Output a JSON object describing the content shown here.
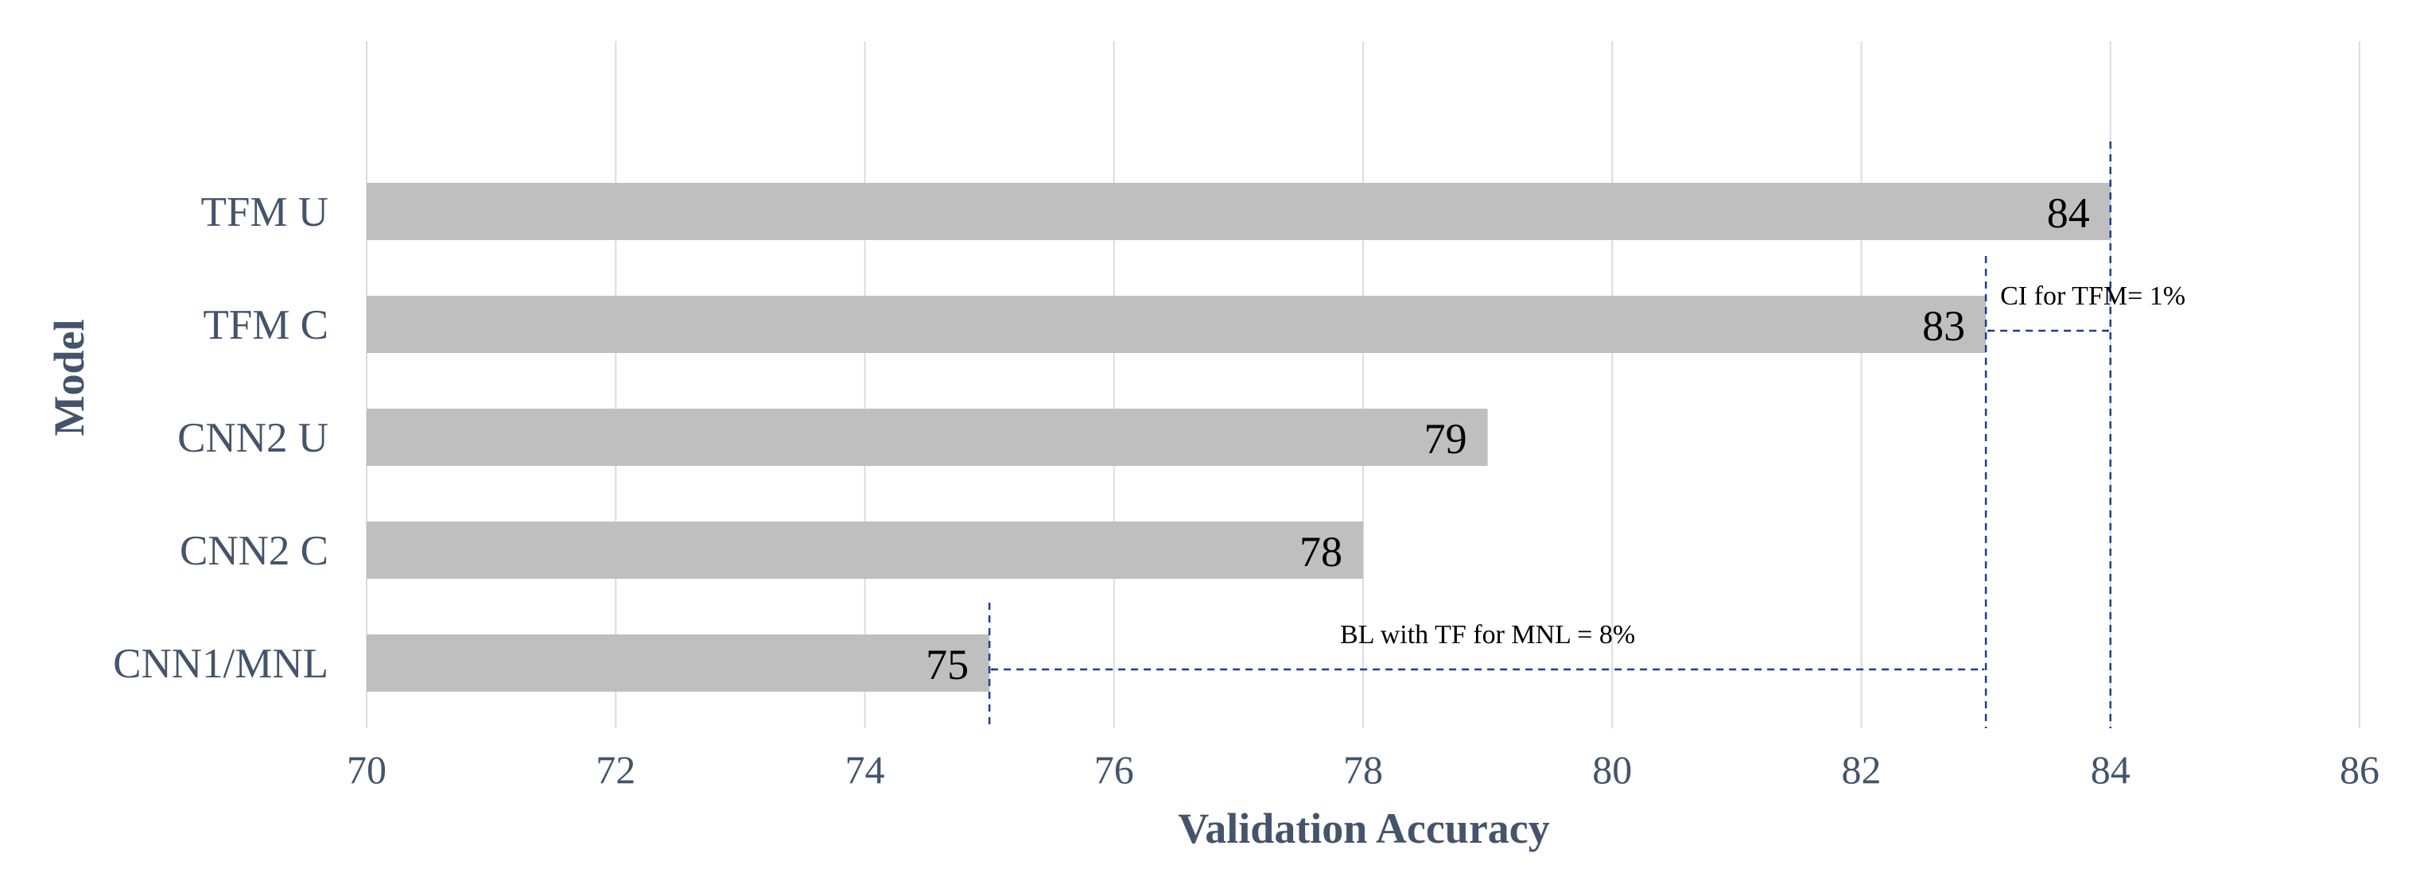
{
  "chart_data": {
    "type": "bar",
    "orientation": "horizontal",
    "categories": [
      "TFM U",
      "TFM C",
      "CNN2 U",
      "CNN2 C",
      "CNN1/MNL"
    ],
    "values": [
      84,
      83,
      79,
      78,
      75
    ],
    "data_labels": [
      "84",
      "83",
      "79",
      "78",
      "75"
    ],
    "xlabel": "Validation Accuracy",
    "ylabel": "Model",
    "xlim": [
      70,
      86
    ],
    "xticks": [
      70,
      72,
      74,
      76,
      78,
      80,
      82,
      84,
      86
    ],
    "xtick_labels": [
      "70",
      "72",
      "74",
      "76",
      "78",
      "80",
      "82",
      "84",
      "86"
    ],
    "grid": "vertical",
    "colors": {
      "bar": "#bfbfbf",
      "grid": "#d9dce6",
      "axis_text": "#44546a",
      "annotation": "#1f3f8f",
      "arrowhead": "#0b2a6e"
    },
    "reference_lines": [
      75,
      83,
      84
    ],
    "annotations": [
      {
        "text": "CI for TFM= 1%",
        "from": 83,
        "to": 84,
        "category": "TFM C"
      },
      {
        "text": "BL with TF for MNL = 8%",
        "from": 75,
        "to": 83,
        "category": "CNN1/MNL"
      }
    ]
  }
}
